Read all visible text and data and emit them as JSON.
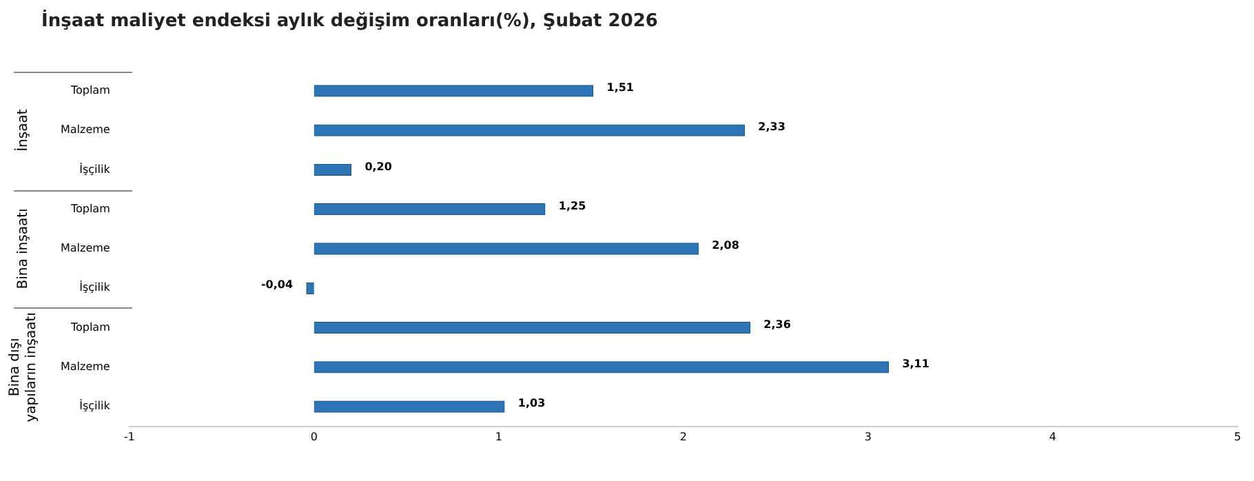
{
  "chart_data": {
    "type": "bar",
    "orientation": "horizontal",
    "title": "İnşaat maliyet endeksi aylık değişim oranları(%), Şubat 2026",
    "categories": [
      "Toplam",
      "Malzeme",
      "İşçilik",
      "Toplam",
      "Malzeme",
      "İşçilik",
      "Toplam",
      "Malzeme",
      "İşçilik"
    ],
    "values": [
      1.51,
      2.33,
      0.2,
      1.25,
      2.08,
      -0.04,
      2.36,
      3.11,
      1.03
    ],
    "value_labels": [
      "1,51",
      "2,33",
      "0,20",
      "1,25",
      "2,08",
      "-0,04",
      "2,36",
      "3,11",
      "1,03"
    ],
    "color": "#2e75b6",
    "annotations": [
      "İnşaat",
      "Bina inşaatı",
      "Bina dışı yapıların inşaatı"
    ],
    "xlim": [
      -1,
      5
    ],
    "xticks": [
      -1,
      0,
      1,
      2,
      3,
      4,
      5
    ],
    "grid": false,
    "legend": false
  }
}
